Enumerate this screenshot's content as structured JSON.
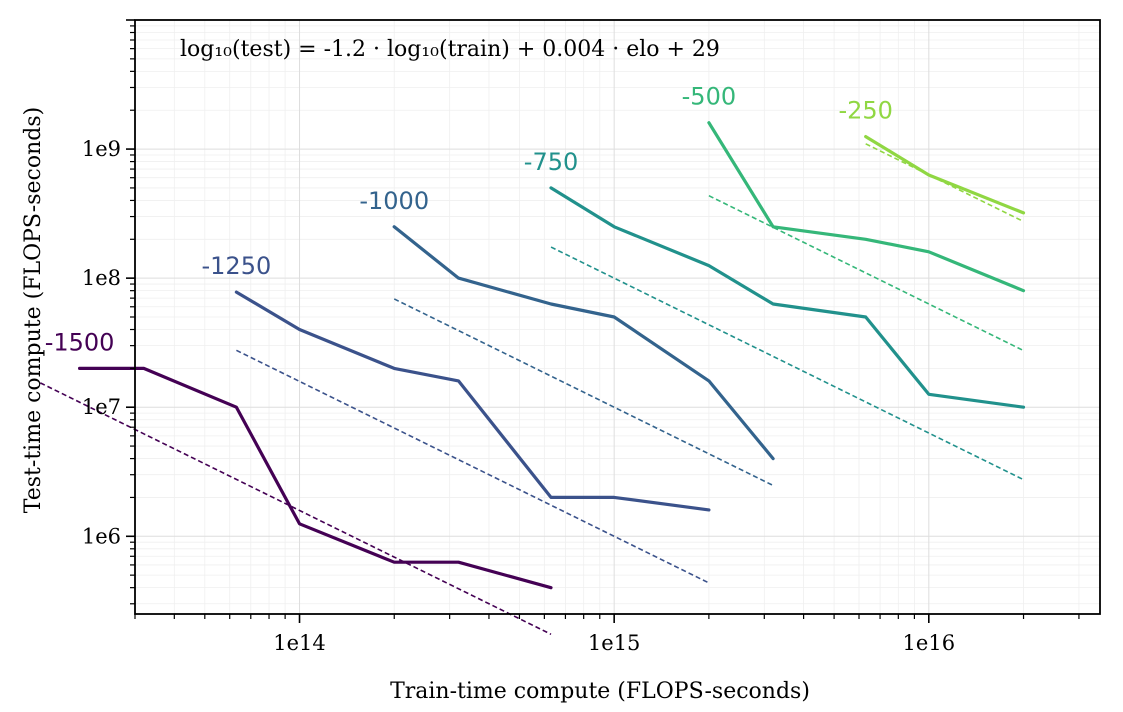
{
  "chart_data": {
    "type": "line",
    "xscale": "log",
    "yscale": "log",
    "xlim": [
      30000000000000,
      35000000000000000
    ],
    "ylim": [
      250000,
      10000000000
    ],
    "xlabel": "Train-time compute (FLOPS-seconds)",
    "ylabel": "Test-time compute (FLOPS-seconds)",
    "x_tick_labels": [
      "1e14",
      "1e15",
      "1e16"
    ],
    "y_tick_labels": [
      "1e6",
      "1e7",
      "1e8",
      "1e9"
    ],
    "grid": true,
    "annotation": "log₁₀(test) = -1.2 · log₁₀(train) + 0.004 · elo + 29",
    "fit": {
      "slope": -1.2,
      "elo_coef": 0.004,
      "intercept": 29
    },
    "series": [
      {
        "name": "-1500",
        "elo": -1500,
        "color": "#440154",
        "x": [
          20000000000000,
          32000000000000,
          63000000000000,
          100000000000000,
          200000000000000,
          320000000000000,
          630000000000000
        ],
        "y": [
          20000000,
          20000000,
          10000000,
          1250000,
          630000,
          630000,
          400000
        ],
        "fit_x": [
          15000000000000,
          630000000000000
        ]
      },
      {
        "name": "-1250",
        "elo": -1250,
        "color": "#3b528b",
        "x": [
          63000000000000,
          100000000000000,
          200000000000000,
          320000000000000,
          630000000000000,
          1000000000000000,
          2000000000000000
        ],
        "y": [
          78000000,
          40000000,
          20000000,
          16000000,
          2000000,
          2000000,
          1600000
        ],
        "fit_x": [
          63000000000000,
          2000000000000000
        ]
      },
      {
        "name": "-1000",
        "elo": -1000,
        "color": "#33638d",
        "x": [
          200000000000000,
          320000000000000,
          630000000000000,
          1000000000000000,
          2000000000000000,
          3200000000000000
        ],
        "y": [
          250000000,
          100000000,
          63000000,
          50000000,
          16000000,
          4000000
        ],
        "fit_x": [
          200000000000000,
          3200000000000000
        ]
      },
      {
        "name": "-750",
        "elo": -750,
        "color": "#21918c",
        "x": [
          630000000000000,
          1000000000000000,
          2000000000000000,
          3200000000000000,
          6300000000000000,
          10000000000000000,
          20000000000000000
        ],
        "y": [
          500000000,
          250000000,
          125000000,
          63000000,
          50000000,
          12600000,
          10000000
        ],
        "fit_x": [
          630000000000000,
          20000000000000000
        ]
      },
      {
        "name": "-500",
        "elo": -500,
        "color": "#35b779",
        "x": [
          2000000000000000,
          3200000000000000,
          6300000000000000,
          10000000000000000,
          20000000000000000
        ],
        "y": [
          1600000000,
          250000000,
          200000000,
          160000000,
          80000000
        ],
        "fit_x": [
          2000000000000000,
          20000000000000000
        ]
      },
      {
        "name": "-250",
        "elo": -250,
        "color": "#90d743",
        "x": [
          6300000000000000,
          10000000000000000,
          20000000000000000
        ],
        "y": [
          1250000000,
          630000000,
          320000000
        ],
        "fit_x": [
          6300000000000000,
          20000000000000000
        ]
      }
    ]
  }
}
